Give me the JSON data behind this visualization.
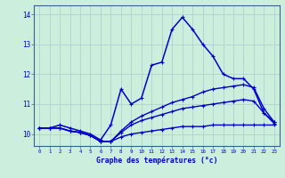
{
  "xlabel": "Graphe des températures (°c)",
  "background_color": "#cceedd",
  "grid_color": "#aacccc",
  "line_color": "#0000cc",
  "x_ticks": [
    0,
    1,
    2,
    3,
    4,
    5,
    6,
    7,
    8,
    9,
    10,
    11,
    12,
    13,
    14,
    15,
    16,
    17,
    18,
    19,
    20,
    21,
    22,
    23
  ],
  "y_ticks": [
    10,
    11,
    12,
    13,
    14
  ],
  "xlim": [
    -0.5,
    23.5
  ],
  "ylim": [
    9.6,
    14.3
  ],
  "curves": [
    {
      "x": [
        0,
        1,
        2,
        3,
        4,
        5,
        6,
        7,
        8,
        9,
        10,
        11,
        12,
        13,
        14,
        15,
        16,
        17,
        18,
        19,
        20,
        21,
        22,
        23
      ],
      "y": [
        10.2,
        10.2,
        10.3,
        10.2,
        10.1,
        10.0,
        9.8,
        10.3,
        11.5,
        11.0,
        11.2,
        12.3,
        12.4,
        13.5,
        13.9,
        13.5,
        13.0,
        12.6,
        12.0,
        11.85,
        11.85,
        11.5,
        10.7,
        10.4
      ],
      "marker": "+",
      "markersize": 3.5,
      "linewidth": 1.1
    },
    {
      "x": [
        0,
        1,
        2,
        3,
        4,
        5,
        6,
        7,
        8,
        9,
        10,
        11,
        12,
        13,
        14,
        15,
        16,
        17,
        18,
        19,
        20,
        21,
        22,
        23
      ],
      "y": [
        10.2,
        10.2,
        10.2,
        10.1,
        10.05,
        9.95,
        9.75,
        9.75,
        10.1,
        10.4,
        10.6,
        10.75,
        10.9,
        11.05,
        11.15,
        11.25,
        11.4,
        11.5,
        11.55,
        11.6,
        11.65,
        11.55,
        10.85,
        10.4
      ],
      "marker": "+",
      "markersize": 3.0,
      "linewidth": 1.0
    },
    {
      "x": [
        0,
        1,
        2,
        3,
        4,
        5,
        6,
        7,
        8,
        9,
        10,
        11,
        12,
        13,
        14,
        15,
        16,
        17,
        18,
        19,
        20,
        21,
        22,
        23
      ],
      "y": [
        10.2,
        10.2,
        10.2,
        10.1,
        10.05,
        9.95,
        9.75,
        9.75,
        10.05,
        10.3,
        10.45,
        10.55,
        10.65,
        10.75,
        10.85,
        10.9,
        10.95,
        11.0,
        11.05,
        11.1,
        11.15,
        11.1,
        10.7,
        10.35
      ],
      "marker": "+",
      "markersize": 3.0,
      "linewidth": 1.0
    },
    {
      "x": [
        0,
        1,
        2,
        3,
        4,
        5,
        6,
        7,
        8,
        9,
        10,
        11,
        12,
        13,
        14,
        15,
        16,
        17,
        18,
        19,
        20,
        21,
        22,
        23
      ],
      "y": [
        10.2,
        10.2,
        10.2,
        10.1,
        10.05,
        9.95,
        9.75,
        9.75,
        9.9,
        10.0,
        10.05,
        10.1,
        10.15,
        10.2,
        10.25,
        10.25,
        10.25,
        10.3,
        10.3,
        10.3,
        10.3,
        10.3,
        10.3,
        10.3
      ],
      "marker": "+",
      "markersize": 3.0,
      "linewidth": 1.0
    }
  ]
}
